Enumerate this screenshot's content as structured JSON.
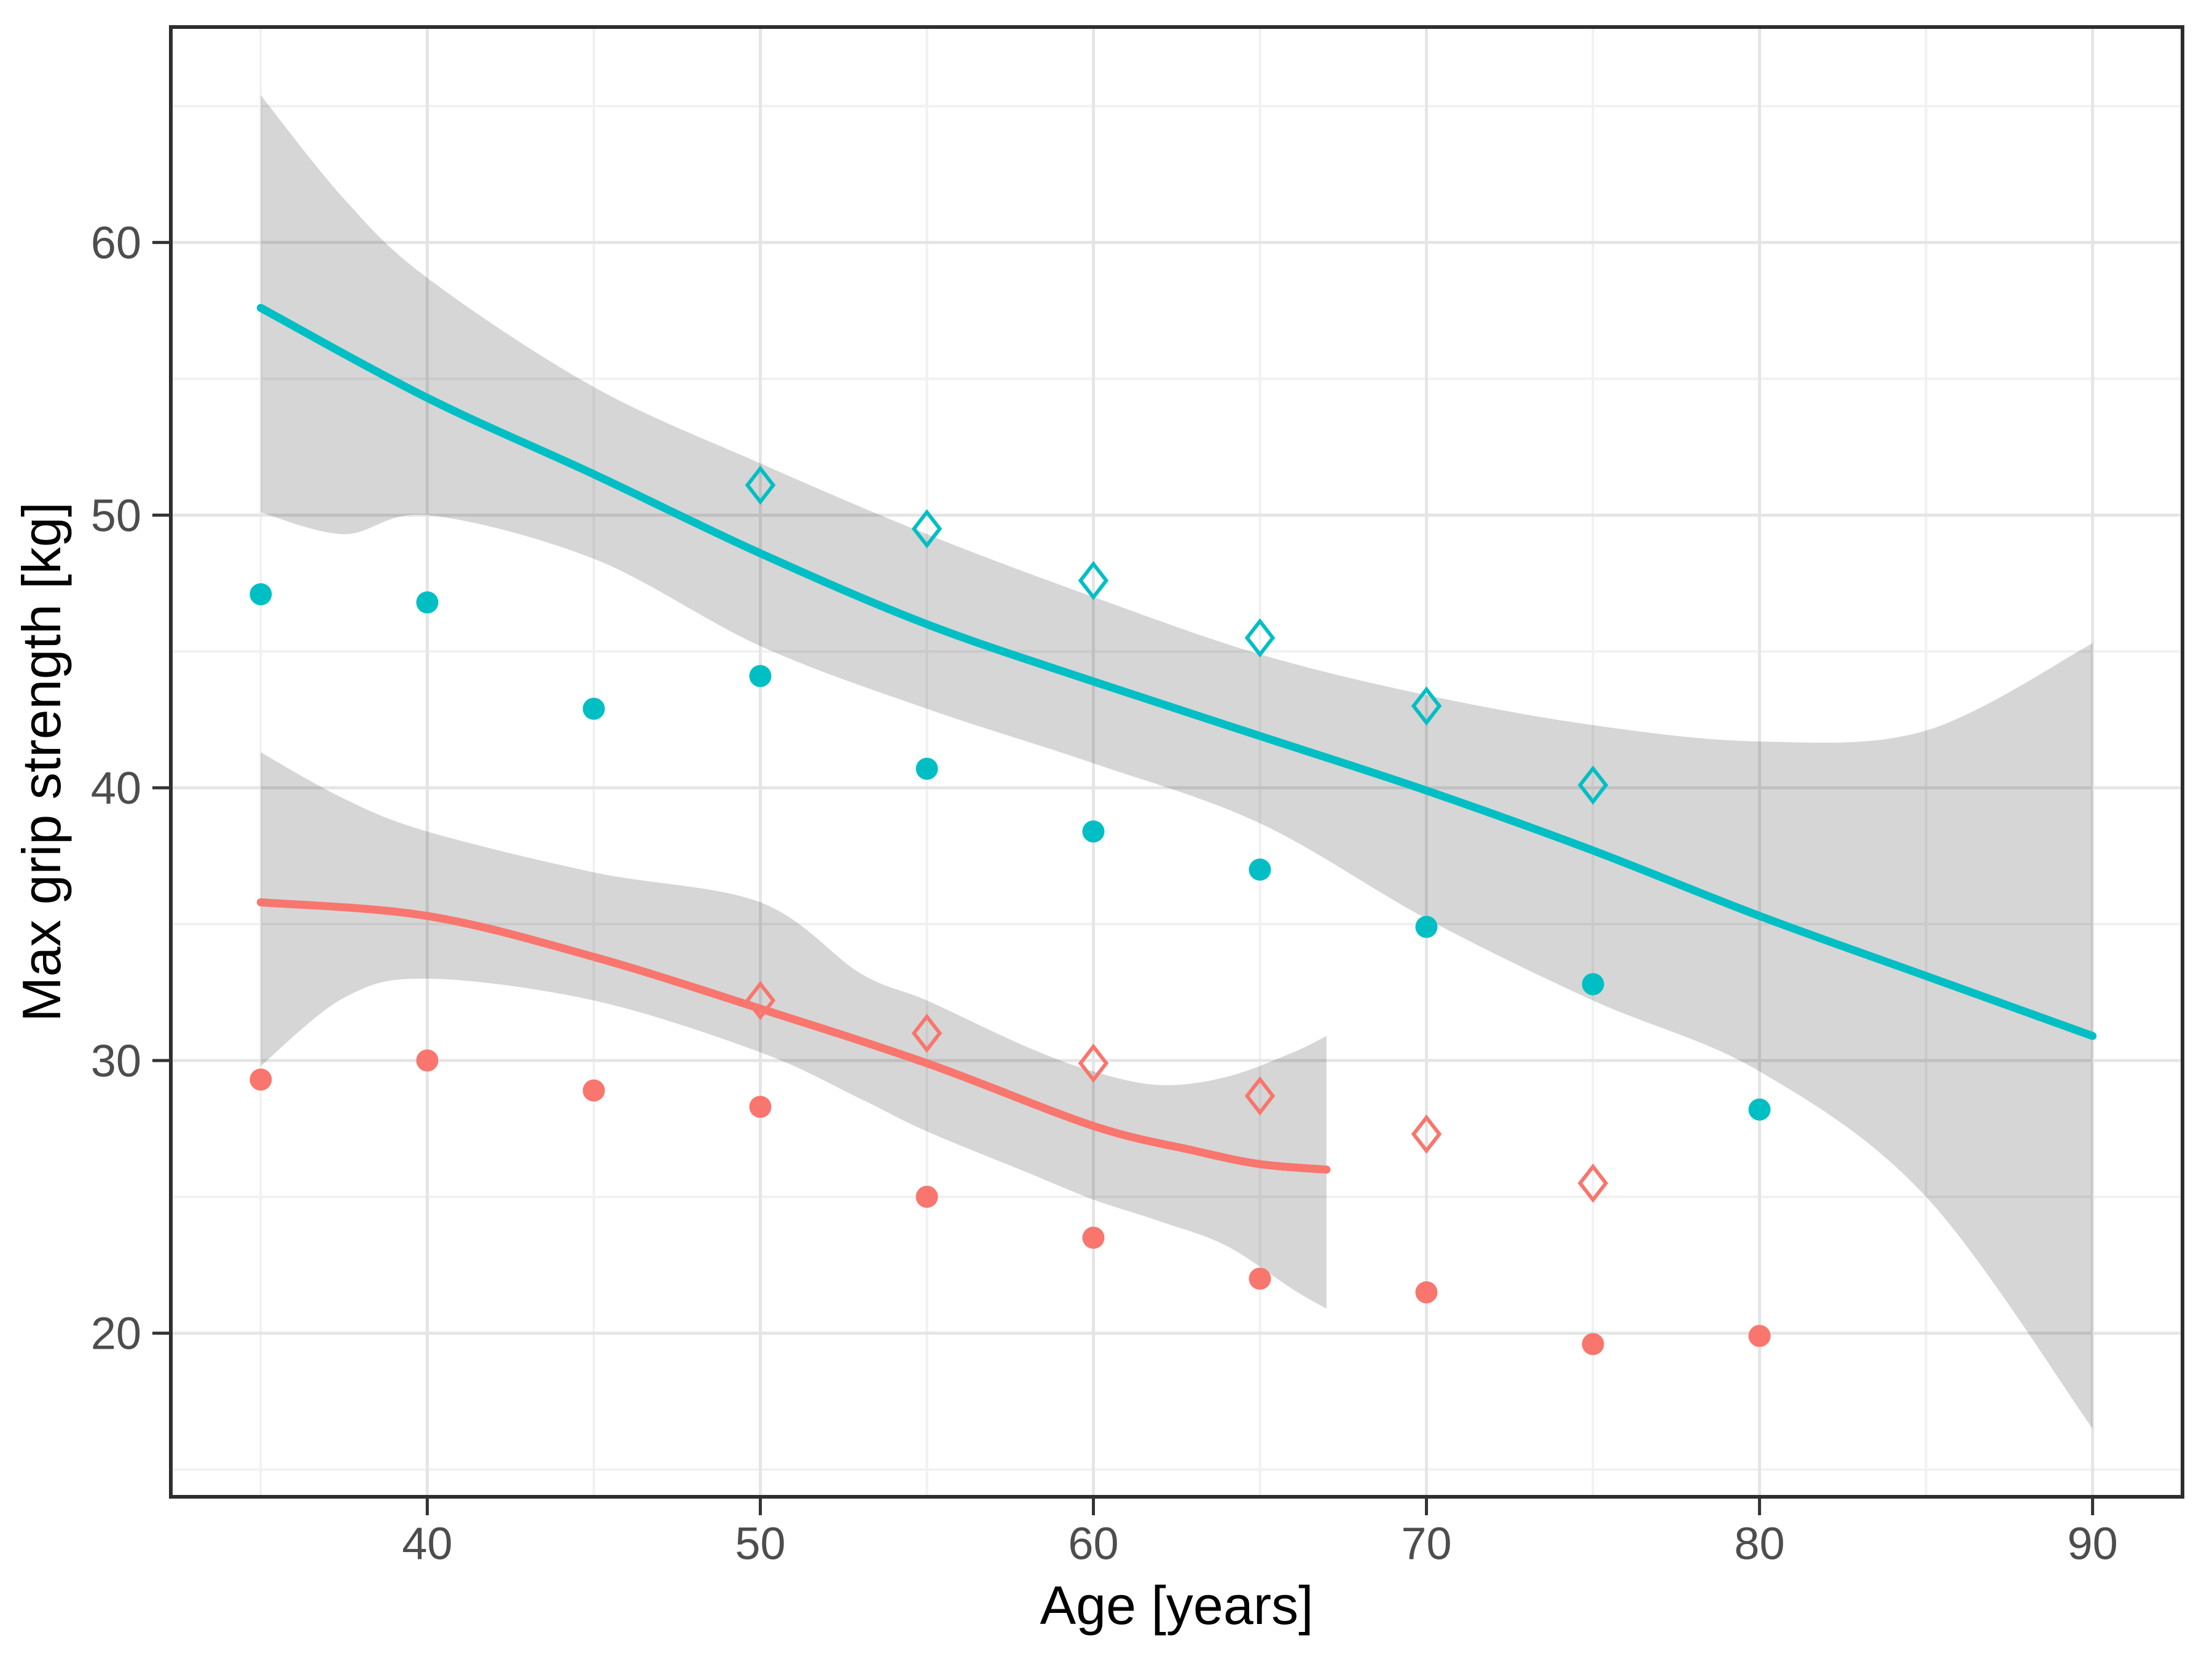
{
  "chart_data": {
    "type": "scatter",
    "title": "",
    "xlabel": "Age [years]",
    "ylabel": "Max grip strength [kg]",
    "x_axis": {
      "ticks": [
        40,
        50,
        60,
        70,
        80,
        90
      ],
      "minor_ticks": [
        35,
        45,
        55,
        65,
        75,
        85
      ],
      "range": [
        32.3,
        92.7
      ]
    },
    "y_axis": {
      "ticks": [
        20,
        30,
        40,
        50,
        60
      ],
      "minor_ticks": [
        15,
        25,
        35,
        45,
        55,
        65
      ],
      "range": [
        14.0,
        67.9
      ]
    },
    "grid": true,
    "legend": "none",
    "colors": {
      "teal": "#00BFC4",
      "red": "#F8766D",
      "ribbon": "rgba(0,0,0,0.16)",
      "major_grid": "#E5E5E5",
      "minor_grid": "#F1F1F1",
      "panel_border": "#2E2E2E",
      "tick_mark": "#333333",
      "tick_label": "#4D4D4D",
      "axis_title": "#000000",
      "background": "#FFFFFF"
    },
    "series": [
      {
        "name": "teal-filled-circles",
        "kind": "points",
        "shape": "circle",
        "color_key": "teal",
        "x": [
          35,
          40,
          45,
          50,
          55,
          60,
          65,
          70,
          75,
          80
        ],
        "y": [
          47.1,
          46.8,
          42.9,
          44.1,
          40.7,
          38.4,
          37.0,
          34.9,
          32.8,
          28.2
        ]
      },
      {
        "name": "teal-open-diamonds",
        "kind": "points",
        "shape": "open-diamond",
        "color_key": "teal",
        "x": [
          50,
          55,
          60,
          65,
          70,
          75
        ],
        "y": [
          51.1,
          49.5,
          47.6,
          45.5,
          43.0,
          40.1
        ]
      },
      {
        "name": "red-filled-circles",
        "kind": "points",
        "shape": "circle",
        "color_key": "red",
        "x": [
          35,
          40,
          45,
          50,
          55,
          60,
          65,
          70,
          75,
          80
        ],
        "y": [
          29.3,
          30.0,
          28.9,
          28.3,
          25.0,
          23.5,
          22.0,
          21.5,
          19.6,
          19.9
        ]
      },
      {
        "name": "red-open-diamonds",
        "kind": "points",
        "shape": "open-diamond",
        "color_key": "red",
        "x": [
          50,
          55,
          60,
          65,
          70,
          75
        ],
        "y": [
          32.2,
          31.0,
          29.9,
          28.7,
          27.3,
          25.5
        ]
      }
    ],
    "smooths": [
      {
        "name": "teal-loess",
        "color_key": "teal",
        "x": [
          35,
          40,
          45,
          50,
          55,
          60,
          65,
          70,
          75,
          80,
          85,
          90
        ],
        "y": [
          57.6,
          54.3,
          51.5,
          48.6,
          46.0,
          43.9,
          41.9,
          39.9,
          37.7,
          35.3,
          33.1,
          30.9
        ],
        "ribbon_x": [
          35,
          37.5,
          40,
          45,
          50,
          55,
          60,
          65,
          70,
          75,
          80,
          85,
          90
        ],
        "ribbon_upper": [
          65.4,
          61.6,
          58.7,
          54.7,
          51.9,
          49.3,
          47.0,
          44.9,
          43.4,
          42.3,
          41.7,
          42.1,
          45.3
        ],
        "ribbon_lower": [
          50.1,
          49.3,
          50.0,
          48.4,
          45.2,
          42.9,
          40.9,
          38.7,
          35.2,
          32.2,
          29.6,
          25.0,
          16.5
        ]
      },
      {
        "name": "red-loess",
        "color_key": "red",
        "x": [
          35,
          40,
          45,
          50,
          55,
          60,
          63,
          65,
          67
        ],
        "y": [
          35.8,
          35.3,
          33.8,
          31.9,
          29.9,
          27.6,
          26.7,
          26.2,
          26.0
        ],
        "ribbon_x": [
          35,
          37.5,
          40,
          45,
          50,
          53,
          55,
          58,
          60,
          62,
          64,
          66,
          67
        ],
        "ribbon_upper": [
          41.3,
          39.6,
          38.4,
          36.9,
          35.8,
          33.2,
          32.2,
          30.5,
          29.6,
          29.1,
          29.4,
          30.3,
          30.9
        ],
        "ribbon_lower": [
          29.8,
          32.3,
          33.0,
          32.2,
          30.3,
          28.6,
          27.4,
          25.9,
          24.9,
          24.1,
          23.2,
          21.6,
          20.9
        ]
      }
    ],
    "style": {
      "point_radius": 18,
      "diamond_half_width": 21,
      "diamond_half_height": 27,
      "diamond_stroke": 6,
      "line_width": 13,
      "major_grid_width": 5,
      "minor_grid_width": 4,
      "border_width": 6,
      "tick_length": 30,
      "tick_width": 5,
      "tick_font_size": 74
    }
  }
}
